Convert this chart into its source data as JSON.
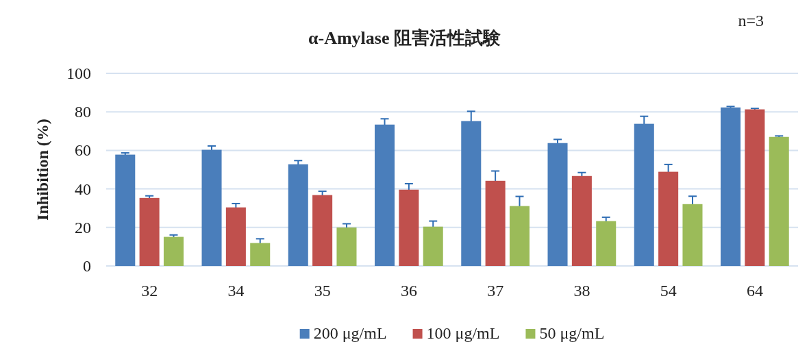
{
  "chart_data": {
    "type": "bar",
    "title": "α-Amylase 阻害活性試験",
    "ylabel": "Inhibition (%)",
    "annotations": [
      "n=3"
    ],
    "categories": [
      "32",
      "34",
      "35",
      "36",
      "37",
      "38",
      "54",
      "64"
    ],
    "series": [
      {
        "name": "200 μg/mL",
        "color": "#4a7ebb",
        "values": [
          57.8,
          60.3,
          52.8,
          73.4,
          75.2,
          63.8,
          73.8,
          82.3
        ],
        "errors": [
          0.9,
          2.0,
          1.9,
          3.0,
          5.1,
          1.9,
          3.9,
          0.5
        ]
      },
      {
        "name": "100 μg/mL",
        "color": "#c0504d",
        "values": [
          35.3,
          30.4,
          36.8,
          39.6,
          44.2,
          46.7,
          48.9,
          81.3
        ],
        "errors": [
          1.1,
          2.0,
          2.0,
          3.1,
          5.1,
          1.8,
          3.8,
          0.5
        ]
      },
      {
        "name": "50 μg/mL",
        "color": "#9bbb59",
        "values": [
          15.1,
          11.9,
          20.0,
          20.4,
          31.1,
          23.3,
          32.1,
          67.0
        ],
        "errors": [
          1.0,
          2.2,
          1.9,
          2.9,
          5.0,
          2.0,
          4.1,
          0.5
        ]
      }
    ],
    "ylim": [
      0,
      100
    ],
    "yticks": [
      0,
      20,
      40,
      60,
      80,
      100
    ],
    "grid": "y",
    "legend": "bottom"
  }
}
